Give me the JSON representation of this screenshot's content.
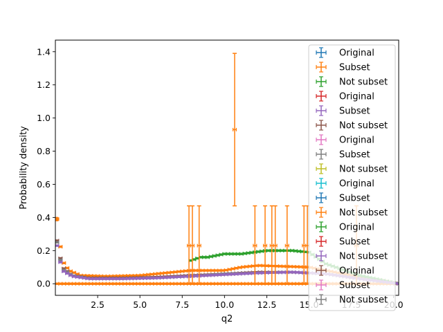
{
  "chart_data": {
    "type": "errorbar",
    "xlabel": "q2",
    "ylabel": "Probability density",
    "xlim": [
      0.0,
      20.3
    ],
    "ylim": [
      -0.07,
      1.47
    ],
    "xticks": [
      2.5,
      5.0,
      7.5,
      10.0,
      12.5,
      15.0,
      17.5,
      20.0
    ],
    "xtick_labels": [
      "2.5",
      "5.0",
      "7.5",
      "10.0",
      "12.5",
      "15.0",
      "17.5",
      "20.0"
    ],
    "yticks": [
      0.0,
      0.2,
      0.4,
      0.6,
      0.8,
      1.0,
      1.2,
      1.4
    ],
    "ytick_labels": [
      "0.0",
      "0.2",
      "0.4",
      "0.6",
      "0.8",
      "1.0",
      "1.2",
      "1.4"
    ],
    "legend_position": "upper-right",
    "colors": [
      "#1f77b4",
      "#ff7f0e",
      "#2ca02c",
      "#d62728",
      "#9467bd",
      "#8c564b",
      "#e377c2",
      "#7f7f7f",
      "#bcbd22",
      "#17becf"
    ],
    "series": [
      {
        "name": "Original",
        "color": "#1f77b4"
      },
      {
        "name": "Subset",
        "color": "#ff7f0e"
      },
      {
        "name": "Not subset",
        "color": "#2ca02c"
      },
      {
        "name": "Original",
        "color": "#d62728"
      },
      {
        "name": "Subset",
        "color": "#9467bd"
      },
      {
        "name": "Not subset",
        "color": "#8c564b"
      },
      {
        "name": "Original",
        "color": "#e377c2"
      },
      {
        "name": "Subset",
        "color": "#7f7f7f"
      },
      {
        "name": "Not subset",
        "color": "#bcbd22"
      },
      {
        "name": "Original",
        "color": "#17becf"
      },
      {
        "name": "Subset",
        "color": "#1f77b4"
      },
      {
        "name": "Not subset",
        "color": "#ff7f0e"
      },
      {
        "name": "Original",
        "color": "#2ca02c"
      },
      {
        "name": "Subset",
        "color": "#d62728"
      },
      {
        "name": "Not subset",
        "color": "#9467bd"
      },
      {
        "name": "Original",
        "color": "#8c564b"
      },
      {
        "name": "Subset",
        "color": "#e377c2"
      },
      {
        "name": "Not subset",
        "color": "#7f7f7f"
      }
    ],
    "tall_bars": [
      {
        "x": 10.6,
        "y": 0.93,
        "ylow": 0.47,
        "yhigh": 1.39,
        "color": "#ff7f0e"
      },
      {
        "x": 7.9,
        "y": 0.23,
        "ylow": 0.0,
        "yhigh": 0.47,
        "color": "#ff7f0e"
      },
      {
        "x": 8.1,
        "y": 0.23,
        "ylow": 0.0,
        "yhigh": 0.47,
        "color": "#ff7f0e"
      },
      {
        "x": 8.5,
        "y": 0.23,
        "ylow": 0.0,
        "yhigh": 0.47,
        "color": "#ff7f0e"
      },
      {
        "x": 11.8,
        "y": 0.23,
        "ylow": 0.0,
        "yhigh": 0.47,
        "color": "#ff7f0e"
      },
      {
        "x": 12.4,
        "y": 0.23,
        "ylow": 0.0,
        "yhigh": 0.47,
        "color": "#ff7f0e"
      },
      {
        "x": 12.8,
        "y": 0.23,
        "ylow": 0.0,
        "yhigh": 0.47,
        "color": "#ff7f0e"
      },
      {
        "x": 13.0,
        "y": 0.23,
        "ylow": 0.0,
        "yhigh": 0.47,
        "color": "#ff7f0e"
      },
      {
        "x": 13.7,
        "y": 0.23,
        "ylow": 0.0,
        "yhigh": 0.47,
        "color": "#ff7f0e"
      },
      {
        "x": 14.7,
        "y": 0.23,
        "ylow": 0.0,
        "yhigh": 0.47,
        "color": "#ff7f0e"
      },
      {
        "x": 14.9,
        "y": 0.23,
        "ylow": 0.0,
        "yhigh": 0.47,
        "color": "#ff7f0e"
      },
      {
        "x": 17.8,
        "y": 0.23,
        "ylow": 0.0,
        "yhigh": 0.47,
        "color": "#ff7f0e"
      },
      {
        "x": 0.05,
        "y": 0.39,
        "ylow": 0.38,
        "yhigh": 0.4,
        "color": "#ff7f0e"
      }
    ],
    "curves": [
      {
        "color": "#ff7f0e",
        "x_start": 0.1,
        "x_end": 20.3,
        "step": 0.2,
        "x": [
          0.1,
          0.4,
          0.8,
          1.5,
          3,
          5,
          7,
          8,
          10,
          11,
          12,
          15,
          17,
          20.3
        ],
        "y": [
          0.39,
          0.14,
          0.08,
          0.05,
          0.045,
          0.05,
          0.07,
          0.08,
          0.08,
          0.1,
          0.11,
          0.1,
          0.06,
          0.0
        ]
      },
      {
        "color": "#ff7f0e",
        "x_start": 0.1,
        "x_end": 20.3,
        "step": 0.2,
        "x": [
          0.1,
          20.3
        ],
        "y": [
          0.0,
          0.0
        ]
      },
      {
        "color": "#2ca02c",
        "x_start": 8.0,
        "x_end": 20.3,
        "step": 0.2,
        "x": [
          8.0,
          8.6,
          9,
          10,
          11,
          12.5,
          13,
          14,
          15,
          16,
          18,
          20.3
        ],
        "y": [
          0.14,
          0.16,
          0.16,
          0.18,
          0.18,
          0.2,
          0.2,
          0.2,
          0.19,
          0.12,
          0.05,
          0.0
        ]
      },
      {
        "color": "#8c564b",
        "x_start": 0.1,
        "x_end": 20.3,
        "step": 0.2,
        "x": [
          0.1,
          0.4,
          1,
          2,
          4,
          6,
          8,
          10,
          12,
          14,
          16,
          18,
          20.3
        ],
        "y": [
          0.26,
          0.1,
          0.05,
          0.035,
          0.035,
          0.04,
          0.05,
          0.06,
          0.07,
          0.07,
          0.06,
          0.03,
          0.0
        ]
      },
      {
        "color": "#7f7f7f",
        "x_start": 0.1,
        "x_end": 20.3,
        "step": 0.2,
        "x": [
          0.1,
          0.4,
          1,
          2,
          4,
          6,
          8,
          10,
          12,
          14,
          16,
          18,
          20.3
        ],
        "y": [
          0.25,
          0.09,
          0.05,
          0.03,
          0.03,
          0.035,
          0.045,
          0.06,
          0.065,
          0.07,
          0.06,
          0.03,
          0.0
        ]
      },
      {
        "color": "#9467bd",
        "x_start": 0.1,
        "x_end": 20.3,
        "step": 0.2,
        "x": [
          0.1,
          0.4,
          1,
          2,
          4,
          6,
          8,
          10,
          12,
          14,
          16,
          18,
          20.3
        ],
        "y": [
          0.23,
          0.08,
          0.045,
          0.03,
          0.03,
          0.035,
          0.045,
          0.055,
          0.065,
          0.07,
          0.06,
          0.03,
          0.0
        ]
      }
    ]
  }
}
